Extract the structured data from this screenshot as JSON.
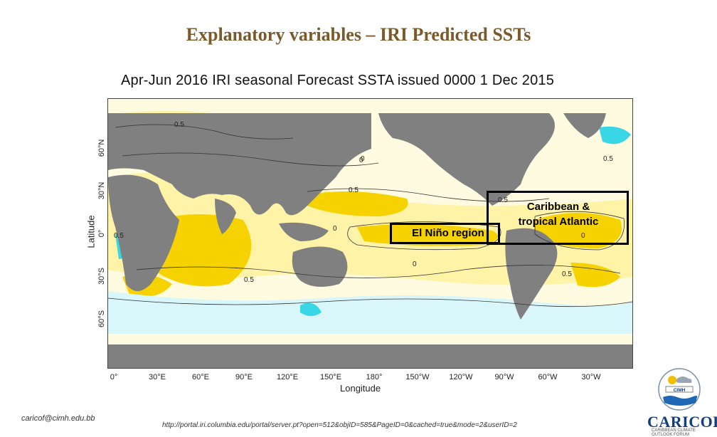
{
  "slide_title": "Explanatory variables – IRI Predicted SSTs",
  "map_title": "Apr-Jun 2016 IRI seasonal Forecast SSTA issued 0000 1 Dec 2015",
  "axes": {
    "y_label": "Latitude",
    "x_label": "Longitude",
    "lat_ticks": [
      "60°N",
      "30°N",
      "0°",
      "30°S",
      "60°S"
    ],
    "lon_ticks": [
      "0°",
      "30°E",
      "60°E",
      "90°E",
      "120°E",
      "150°E",
      "180°",
      "150°W",
      "120°W",
      "90°W",
      "60°W",
      "30°W"
    ]
  },
  "contour_labels": [
    "0.5",
    "0",
    "0.5",
    "0",
    "0.5",
    "0.5",
    "0",
    "0.5",
    "0",
    "0.5",
    "0.5",
    "0"
  ],
  "regions": {
    "el_nino": "El Niño region",
    "caribbean_line1": "Caribbean &",
    "caribbean_line2": "tropical Atlantic"
  },
  "colors": {
    "land": "#808080",
    "warm_strong": "#f6d200",
    "warm_light": "#fff3a8",
    "neutral": "#fffbe0",
    "cool_light": "#d9f6fa",
    "cool": "#39d6e6",
    "title": "#7a5a2a"
  },
  "footer": {
    "email": "caricof@cimh.edu.bb",
    "url": "http://portal.iri.columbia.edu/portal/server.pt?open=512&objID=585&PageID=0&cached=true&mode=2&userID=2"
  },
  "logo": {
    "text": "CARICOF",
    "inner": "CIMH",
    "sub": "CARIBBEAN CLIMATE OUTLOOK FORUM"
  }
}
